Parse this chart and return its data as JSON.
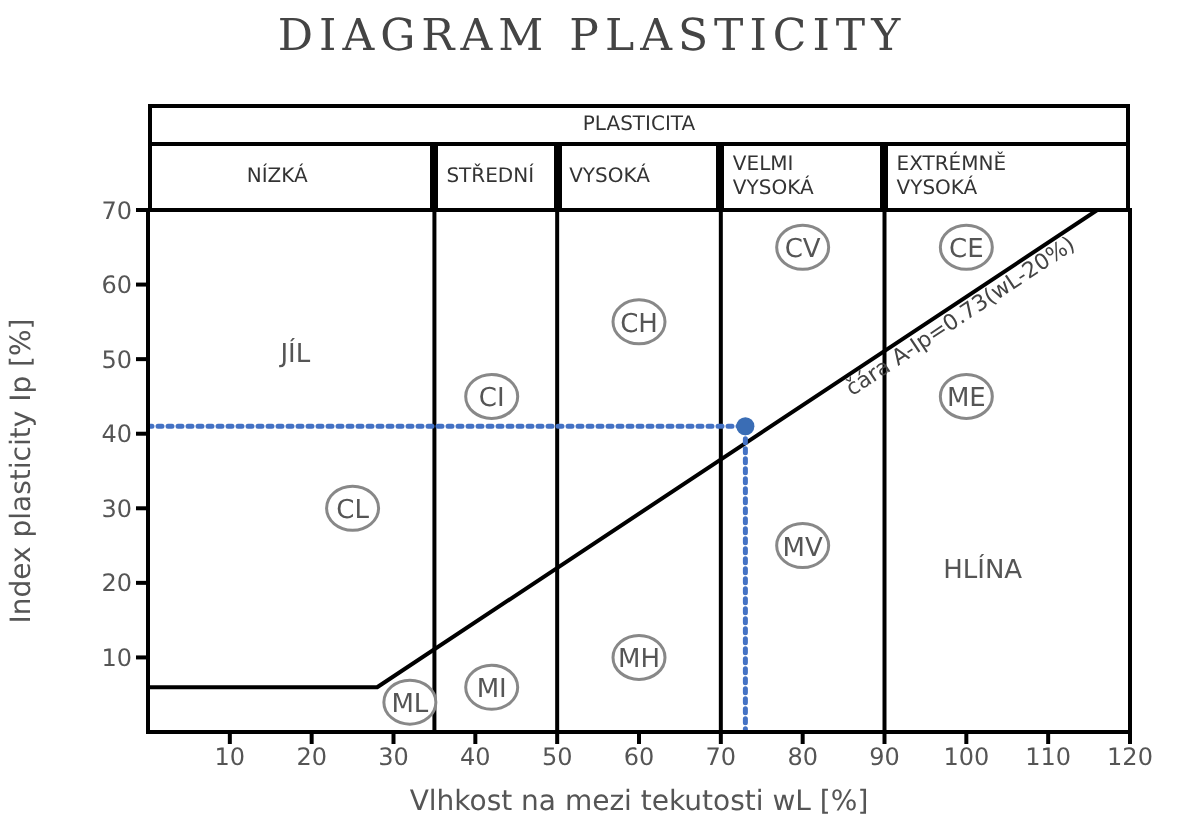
{
  "chart_data": {
    "type": "line",
    "title": "DIAGRAM PLASTICITY",
    "xlabel": "Vlhkost na mezi tekutosti wL [%]",
    "ylabel": "Index plasticity Ip [%]",
    "xlim": [
      0,
      120
    ],
    "xticks": [
      10,
      20,
      30,
      40,
      50,
      60,
      70,
      80,
      90,
      100,
      110,
      120
    ],
    "ylim": [
      0,
      70
    ],
    "yticks": [
      10,
      20,
      30,
      40,
      50,
      60,
      70
    ],
    "series": [
      {
        "name": "čára A-Ip=0.73(wL-20%)",
        "color": "#000000",
        "x": [
          0,
          28,
          116
        ],
        "values": [
          6,
          6,
          70
        ],
        "marker": "none",
        "line_style": "solid"
      },
      {
        "color": "#4472c4",
        "x": [
          0,
          73,
          73
        ],
        "values": [
          41,
          41,
          0
        ],
        "marker": "none",
        "line_style": "dotted"
      },
      {
        "type": "scatter",
        "color": "#3a6db5",
        "x": [
          73
        ],
        "values": [
          41
        ],
        "marker": "circle"
      }
    ],
    "ref_lines": [
      {
        "axis": "x",
        "value": 35,
        "color": "#000000"
      },
      {
        "axis": "x",
        "value": 50,
        "color": "#000000"
      },
      {
        "axis": "x",
        "value": 70,
        "color": "#000000"
      },
      {
        "axis": "x",
        "value": 90,
        "color": "#000000"
      }
    ],
    "annotations": [
      "PLASTICITA",
      "NÍZKÁ",
      "STŘEDNÍ",
      "VYSOKÁ",
      "VELMI VYSOKÁ",
      "EXTRÉMNĚ VYSOKÁ",
      "JÍL",
      "HLÍNA",
      "CL",
      "CI",
      "ML",
      "MI",
      "CH",
      "MH",
      "CV",
      "MV",
      "CE",
      "ME"
    ]
  }
}
